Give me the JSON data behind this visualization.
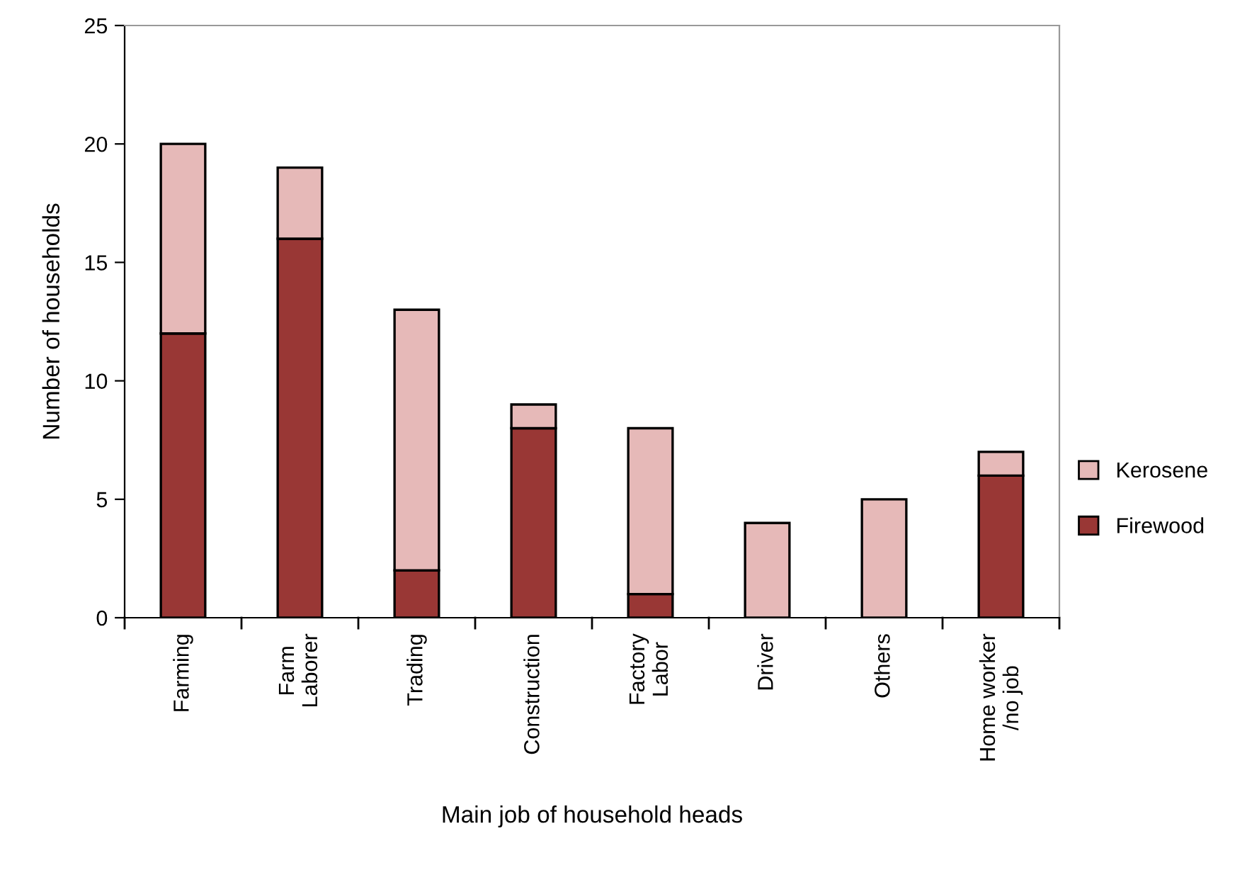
{
  "chart_data": {
    "type": "bar",
    "stacked": true,
    "xlabel": "Main job of household heads",
    "ylabel": "Number of households",
    "categories": [
      "Farming",
      "Farm\nLaborer",
      "Trading",
      "Construction",
      "Factory\nLabor",
      "Driver",
      "Others",
      "Home worker\n/no job"
    ],
    "series": [
      {
        "name": "Firewood",
        "color": "#993735",
        "values": [
          12,
          16,
          2,
          8,
          1,
          0,
          0,
          6
        ]
      },
      {
        "name": "Kerosene",
        "color": "#e6b9b8",
        "values": [
          8,
          3,
          11,
          1,
          7,
          4,
          5,
          1
        ]
      }
    ],
    "ylim": [
      0,
      25
    ],
    "yticks": [
      0,
      5,
      10,
      15,
      20,
      25
    ],
    "grid": false,
    "legend": "right"
  }
}
